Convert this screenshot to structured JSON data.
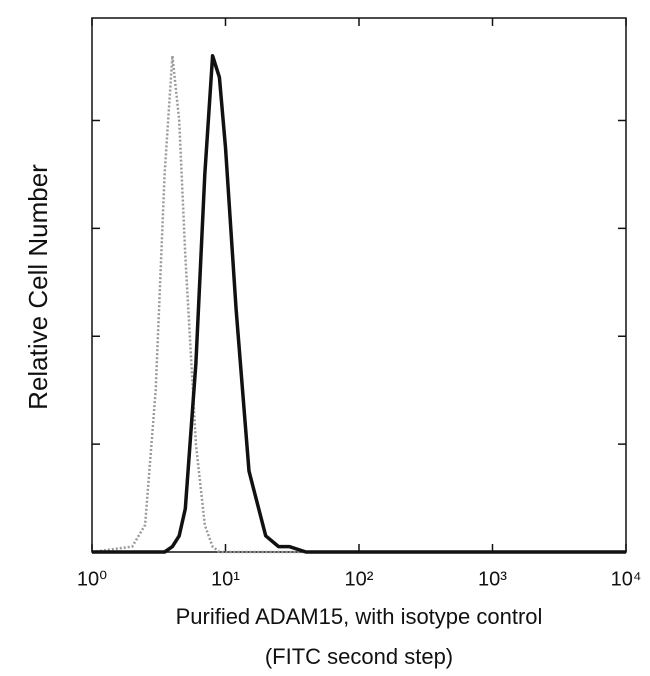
{
  "chart_data": {
    "type": "line",
    "xlabel": [
      "Purified ADAM15, with isotype control",
      "(FITC second step)"
    ],
    "ylabel": "Relative Cell Number",
    "xscale": "log",
    "x": [
      1,
      2,
      2.5,
      3,
      3.5,
      4,
      4.5,
      5,
      6,
      7,
      8,
      9,
      10,
      12,
      15,
      20,
      25,
      30,
      40,
      100,
      1000,
      10000
    ],
    "series": [
      {
        "color": "#9a9a9a",
        "dashed": true,
        "values": [
          0,
          1,
          5,
          30,
          70,
          92,
          80,
          55,
          20,
          5,
          1,
          0,
          0,
          0,
          0,
          0,
          0,
          0,
          0,
          0,
          0,
          0
        ]
      },
      {
        "color": "#111111",
        "dashed": false,
        "values": [
          0,
          0,
          0,
          0,
          0,
          1,
          3,
          8,
          35,
          70,
          92,
          88,
          75,
          45,
          15,
          3,
          1,
          1,
          0,
          0,
          0,
          0
        ]
      }
    ],
    "xlim": [
      1,
      10000
    ],
    "xticks": [
      {
        "value": 1,
        "label": "10⁰"
      },
      {
        "value": 10,
        "label": "10¹"
      },
      {
        "value": 100,
        "label": "10²"
      },
      {
        "value": 1000,
        "label": "10³"
      },
      {
        "value": 10000,
        "label": "10⁴"
      }
    ],
    "ylim": [
      0,
      99
    ],
    "yticks": [
      0,
      20,
      40,
      60,
      80
    ]
  }
}
